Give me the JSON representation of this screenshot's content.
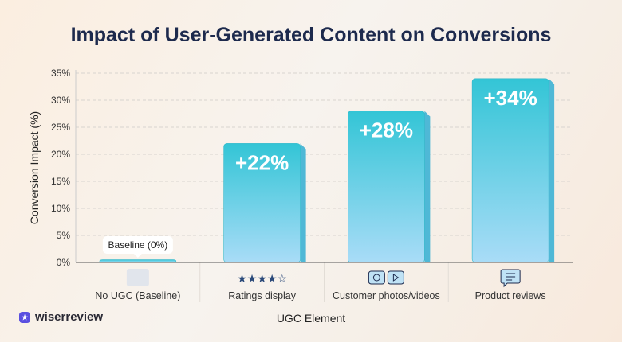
{
  "chart_data": {
    "type": "bar",
    "title": "Impact of User-Generated Content on Conversions",
    "xlabel": "UGC Element",
    "ylabel": "Conversion Impact (%)",
    "ylim": [
      0,
      35
    ],
    "yticks": [
      "0%",
      "5%",
      "10%",
      "15%",
      "20%",
      "25%",
      "30%",
      "35%"
    ],
    "grid": true,
    "categories": [
      "No UGC (Baseline)",
      "Ratings display",
      "Customer photos/videos",
      "Product reviews"
    ],
    "category_icons": [
      "blank-placeholder-icon",
      "star-rating-icon",
      "camera-video-icon",
      "chat-review-icon"
    ],
    "values": [
      0.5,
      22,
      28,
      34
    ],
    "data_labels": [
      "",
      "+22%",
      "+28%",
      "+34%"
    ],
    "annotation": "Baseline (0%)",
    "colors": {
      "bar_top": "#33c5d6",
      "bar_bottom": "#a9dcf7",
      "title": "#1d2a4d"
    }
  },
  "brand": {
    "name": "wiserreview",
    "color": "#5a4fe0"
  }
}
